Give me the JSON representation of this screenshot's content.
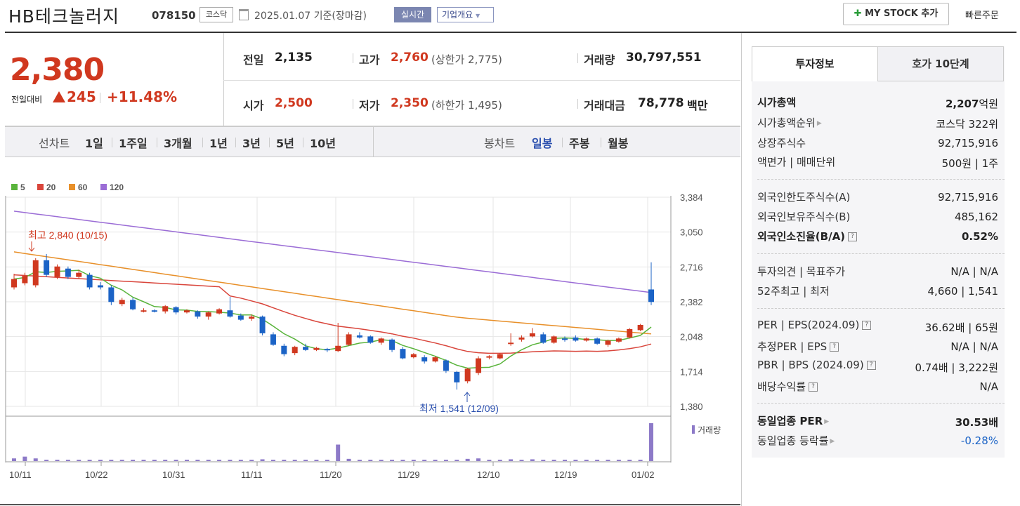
{
  "header": {
    "title": "HB테크놀러지",
    "code": "078150",
    "market": "코스닥",
    "date": "2025.01.07 기준(장마감)",
    "realtime_btn": "실시간",
    "overview_btn": "기업개요",
    "mystock_btn": "MY STOCK 추가",
    "quick_order": "빠른주문"
  },
  "quote": {
    "price": "2,380",
    "change_label": "전일대비",
    "change": "245",
    "change_pct": "+11.48%",
    "prev_label": "전일",
    "prev": "2,135",
    "open_label": "시가",
    "open": "2,500",
    "high_label": "고가",
    "high": "2,760",
    "upper_limit": "(상한가 2,775)",
    "low_label": "저가",
    "low": "2,350",
    "lower_limit": "(하한가 1,495)",
    "volume_label": "거래량",
    "volume": "30,797,551",
    "amount_label": "거래대금",
    "amount": "78,778",
    "amount_unit": "백만"
  },
  "period_bar": {
    "line_label": "선차트",
    "periods": [
      "1일",
      "1주일",
      "3개월",
      "1년",
      "3년",
      "5년",
      "10년"
    ],
    "candle_label": "봉차트",
    "candles": [
      "일봉",
      "주봉",
      "월봉"
    ]
  },
  "colors": {
    "up": "#d0381f",
    "down": "#1b63c6",
    "ma5": "#5ab43c",
    "ma20": "#d9453b",
    "ma60": "#e8902a",
    "ma120": "#9b6dd6",
    "volume": "#8d7ac8"
  },
  "chart_data": {
    "type": "candlestick",
    "legend": [
      "5",
      "20",
      "60",
      "120"
    ],
    "y_ticks": [
      "3,384",
      "3,050",
      "2,716",
      "2,382",
      "2,048",
      "1,714",
      "1,380"
    ],
    "ylim": [
      1380,
      3384
    ],
    "x_ticks": [
      "10/11",
      "10/22",
      "10/31",
      "11/11",
      "11/20",
      "11/29",
      "12/10",
      "12/19",
      "01/02"
    ],
    "annotations": {
      "high": "최고 2,840 (10/15)",
      "low": "최저 1,541 (12/09)"
    },
    "volume_label": "거래량",
    "candles": [
      {
        "o": 2520,
        "c": 2600,
        "h": 2650,
        "l": 2500
      },
      {
        "o": 2560,
        "c": 2630,
        "h": 2660,
        "l": 2540
      },
      {
        "o": 2540,
        "c": 2780,
        "h": 2800,
        "l": 2520
      },
      {
        "o": 2780,
        "c": 2640,
        "h": 2840,
        "l": 2620
      },
      {
        "o": 2620,
        "c": 2720,
        "h": 2740,
        "l": 2600
      },
      {
        "o": 2700,
        "c": 2620,
        "h": 2720,
        "l": 2600
      },
      {
        "o": 2620,
        "c": 2660,
        "h": 2690,
        "l": 2600
      },
      {
        "o": 2640,
        "c": 2520,
        "h": 2660,
        "l": 2500
      },
      {
        "o": 2540,
        "c": 2520,
        "h": 2570,
        "l": 2500
      },
      {
        "o": 2520,
        "c": 2380,
        "h": 2540,
        "l": 2350
      },
      {
        "o": 2360,
        "c": 2400,
        "h": 2420,
        "l": 2340
      },
      {
        "o": 2400,
        "c": 2310,
        "h": 2420,
        "l": 2300
      },
      {
        "o": 2290,
        "c": 2300,
        "h": 2320,
        "l": 2280
      },
      {
        "o": 2300,
        "c": 2290,
        "h": 2310,
        "l": 2280
      },
      {
        "o": 2290,
        "c": 2340,
        "h": 2350,
        "l": 2270
      },
      {
        "o": 2330,
        "c": 2280,
        "h": 2340,
        "l": 2260
      },
      {
        "o": 2280,
        "c": 2300,
        "h": 2310,
        "l": 2270
      },
      {
        "o": 2290,
        "c": 2240,
        "h": 2300,
        "l": 2220
      },
      {
        "o": 2240,
        "c": 2280,
        "h": 2290,
        "l": 2210
      },
      {
        "o": 2270,
        "c": 2310,
        "h": 2320,
        "l": 2260
      },
      {
        "o": 2300,
        "c": 2240,
        "h": 2430,
        "l": 2230
      },
      {
        "o": 2250,
        "c": 2210,
        "h": 2270,
        "l": 2200
      },
      {
        "o": 2220,
        "c": 2240,
        "h": 2260,
        "l": 2200
      },
      {
        "o": 2240,
        "c": 2080,
        "h": 2250,
        "l": 2060
      },
      {
        "o": 2070,
        "c": 1970,
        "h": 2090,
        "l": 1960
      },
      {
        "o": 1960,
        "c": 1880,
        "h": 1980,
        "l": 1860
      },
      {
        "o": 1890,
        "c": 1950,
        "h": 1960,
        "l": 1870
      },
      {
        "o": 1950,
        "c": 1920,
        "h": 1980,
        "l": 1910
      },
      {
        "o": 1920,
        "c": 1940,
        "h": 1950,
        "l": 1910
      },
      {
        "o": 1930,
        "c": 1920,
        "h": 1940,
        "l": 1900
      },
      {
        "o": 1910,
        "c": 1960,
        "h": 2180,
        "l": 1900
      },
      {
        "o": 1970,
        "c": 2070,
        "h": 2090,
        "l": 1960
      },
      {
        "o": 2060,
        "c": 2040,
        "h": 2090,
        "l": 2030
      },
      {
        "o": 2050,
        "c": 1990,
        "h": 2060,
        "l": 1980
      },
      {
        "o": 1990,
        "c": 2030,
        "h": 2040,
        "l": 1970
      },
      {
        "o": 2020,
        "c": 1920,
        "h": 2030,
        "l": 1900
      },
      {
        "o": 1930,
        "c": 1840,
        "h": 1950,
        "l": 1830
      },
      {
        "o": 1850,
        "c": 1880,
        "h": 1890,
        "l": 1840
      },
      {
        "o": 1850,
        "c": 1810,
        "h": 1870,
        "l": 1790
      },
      {
        "o": 1810,
        "c": 1850,
        "h": 1860,
        "l": 1800
      },
      {
        "o": 1820,
        "c": 1720,
        "h": 1830,
        "l": 1700
      },
      {
        "o": 1710,
        "c": 1610,
        "h": 1720,
        "l": 1541
      },
      {
        "o": 1620,
        "c": 1740,
        "h": 1750,
        "l": 1600
      },
      {
        "o": 1700,
        "c": 1840,
        "h": 1860,
        "l": 1680
      },
      {
        "o": 1850,
        "c": 1860,
        "h": 1870,
        "l": 1830
      },
      {
        "o": 1840,
        "c": 1880,
        "h": 1890,
        "l": 1830
      },
      {
        "o": 1980,
        "c": 1990,
        "h": 2080,
        "l": 1960
      },
      {
        "o": 2020,
        "c": 2040,
        "h": 2060,
        "l": 2000
      },
      {
        "o": 2050,
        "c": 2080,
        "h": 2130,
        "l": 2040
      },
      {
        "o": 2070,
        "c": 1990,
        "h": 2090,
        "l": 1980
      },
      {
        "o": 1990,
        "c": 2050,
        "h": 2060,
        "l": 1980
      },
      {
        "o": 2030,
        "c": 2020,
        "h": 2050,
        "l": 2000
      },
      {
        "o": 2040,
        "c": 2010,
        "h": 2060,
        "l": 2000
      },
      {
        "o": 2010,
        "c": 2030,
        "h": 2040,
        "l": 2000
      },
      {
        "o": 2030,
        "c": 1980,
        "h": 2040,
        "l": 1970
      },
      {
        "o": 1970,
        "c": 2010,
        "h": 2020,
        "l": 1950
      },
      {
        "o": 2000,
        "c": 2030,
        "h": 2040,
        "l": 1990
      },
      {
        "o": 2040,
        "c": 2120,
        "h": 2130,
        "l": 2030
      },
      {
        "o": 2110,
        "c": 2160,
        "h": 2170,
        "l": 2100
      },
      {
        "o": 2500,
        "c": 2380,
        "h": 2760,
        "l": 2350
      }
    ],
    "volumes": [
      0.6,
      1,
      0.6,
      0.3,
      0.3,
      0.3,
      0.3,
      0.3,
      0.3,
      0.3,
      0.3,
      0.3,
      0.3,
      0.3,
      0.3,
      0.3,
      0.3,
      0.3,
      0.3,
      0.3,
      0.3,
      0.3,
      0.3,
      0.4,
      0.3,
      0.3,
      0.3,
      0.3,
      0.3,
      0.3,
      3.7,
      0.5,
      0.3,
      0.3,
      0.3,
      0.3,
      0.3,
      0.3,
      0.3,
      0.3,
      0.3,
      0.3,
      0.5,
      0.6,
      0.3,
      0.3,
      0.4,
      0.3,
      0.4,
      0.3,
      0.3,
      0.3,
      0.3,
      0.3,
      0.3,
      0.3,
      0.3,
      0.3,
      0.3,
      8.5
    ]
  },
  "invest": {
    "tabs": [
      "투자정보",
      "호가 10단계"
    ],
    "rows": [
      {
        "label": "시가총액",
        "value": "2,207억원"
      },
      {
        "label": "시가총액순위",
        "value": "코스닥 322위"
      },
      {
        "label": "상장주식수",
        "value": "92,715,916"
      },
      {
        "label": "액면가 | 매매단위",
        "value": "500원 | 1주"
      },
      {
        "label": "외국인한도주식수(A)",
        "value": "92,715,916"
      },
      {
        "label": "외국인보유주식수(B)",
        "value": "485,162"
      },
      {
        "label": "외국인소진율(B/A)",
        "value": "0.52%"
      },
      {
        "label": "투자의견 | 목표주가",
        "value": "N/A | N/A"
      },
      {
        "label": "52주최고 | 최저",
        "value": "4,660 | 1,541"
      },
      {
        "label": "PER | EPS(2024.09)",
        "value": "36.62배 | 65원"
      },
      {
        "label": "추정PER | EPS",
        "value": "N/A | N/A"
      },
      {
        "label": "PBR | BPS (2024.09)",
        "value": "0.74배 | 3,222원"
      },
      {
        "label": "배당수익률",
        "value": "N/A"
      },
      {
        "label": "동일업종 PER",
        "value": "30.53배"
      },
      {
        "label": "동일업종 등락률",
        "value": "-0.28%"
      }
    ]
  }
}
